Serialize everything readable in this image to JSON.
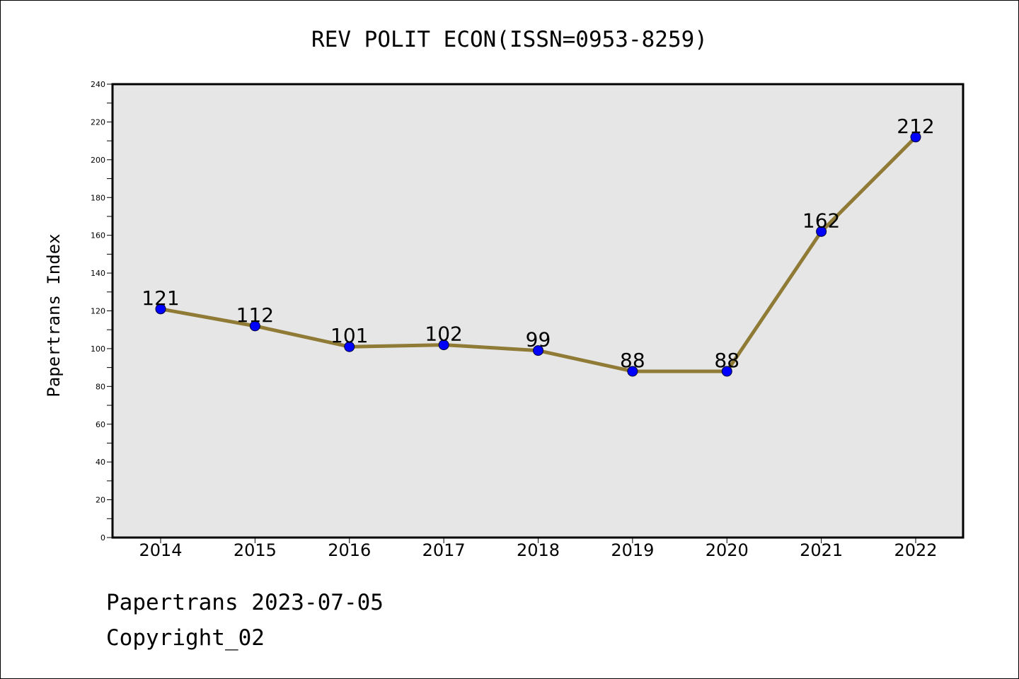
{
  "chart_data": {
    "type": "line",
    "title": "REV POLIT ECON(ISSN=0953-8259)",
    "xlabel": "",
    "ylabel": "Papertrans Index",
    "categories": [
      "2014",
      "2015",
      "2016",
      "2017",
      "2018",
      "2019",
      "2020",
      "2021",
      "2022"
    ],
    "series": [
      {
        "values": [
          121,
          112,
          101,
          102,
          99,
          88,
          88,
          162,
          212
        ]
      }
    ],
    "data_labels": [
      "121",
      "112",
      "101",
      "102",
      "99",
      "88",
      "88",
      "162",
      "212"
    ],
    "ylim": [
      0,
      240
    ],
    "yticks": [
      "0",
      "20",
      "40",
      "60",
      "80",
      "100",
      "120",
      "140",
      "160",
      "180",
      "200",
      "220",
      "240"
    ],
    "grid": false,
    "legend": "none",
    "colors": {
      "line": "#8f7b35",
      "marker": "#0000ff",
      "plot_background": "#e6e6e6"
    }
  },
  "footer": {
    "line1": "Papertrans 2023-07-05",
    "line2": "Copyright_02"
  }
}
